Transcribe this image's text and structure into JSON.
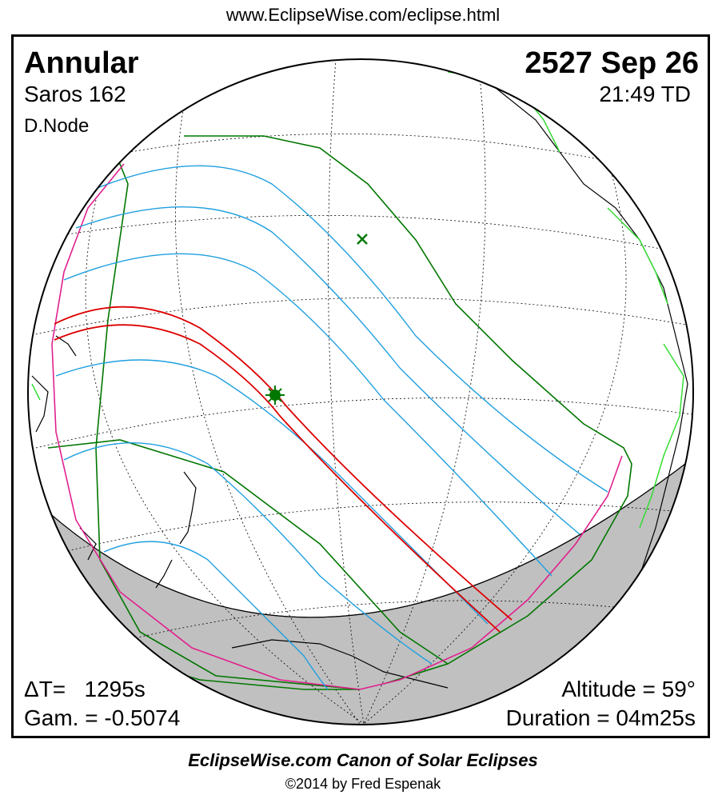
{
  "header": {
    "url": "www.EclipseWise.com/eclipse.html"
  },
  "info": {
    "eclipse_type": "Annular",
    "date": "2527 Sep 26",
    "saros": "Saros 162",
    "time": "21:49 TD",
    "node": "D.Node",
    "delta_t": "ΔT=   1295s",
    "altitude": "Altitude = 59°",
    "gamma": "Gam. = -0.5074",
    "duration": "Duration = 04m25s"
  },
  "colors": {
    "central_path": "#dd0000",
    "penumbral_limits": "#1f9fdf",
    "outer_limits": "#007700",
    "rise_set": "#e0208e",
    "coast": "#000000",
    "borders": "#33dd33",
    "night": "#c0c0c0"
  },
  "markers": {
    "greatest_eclipse_icon": "sun-burst-icon",
    "subsolar_icon": "x-mark-icon"
  },
  "footer": {
    "title": "EclipseWise.com Canon of Solar Eclipses",
    "copyright": "©2014 by Fred Espenak"
  }
}
